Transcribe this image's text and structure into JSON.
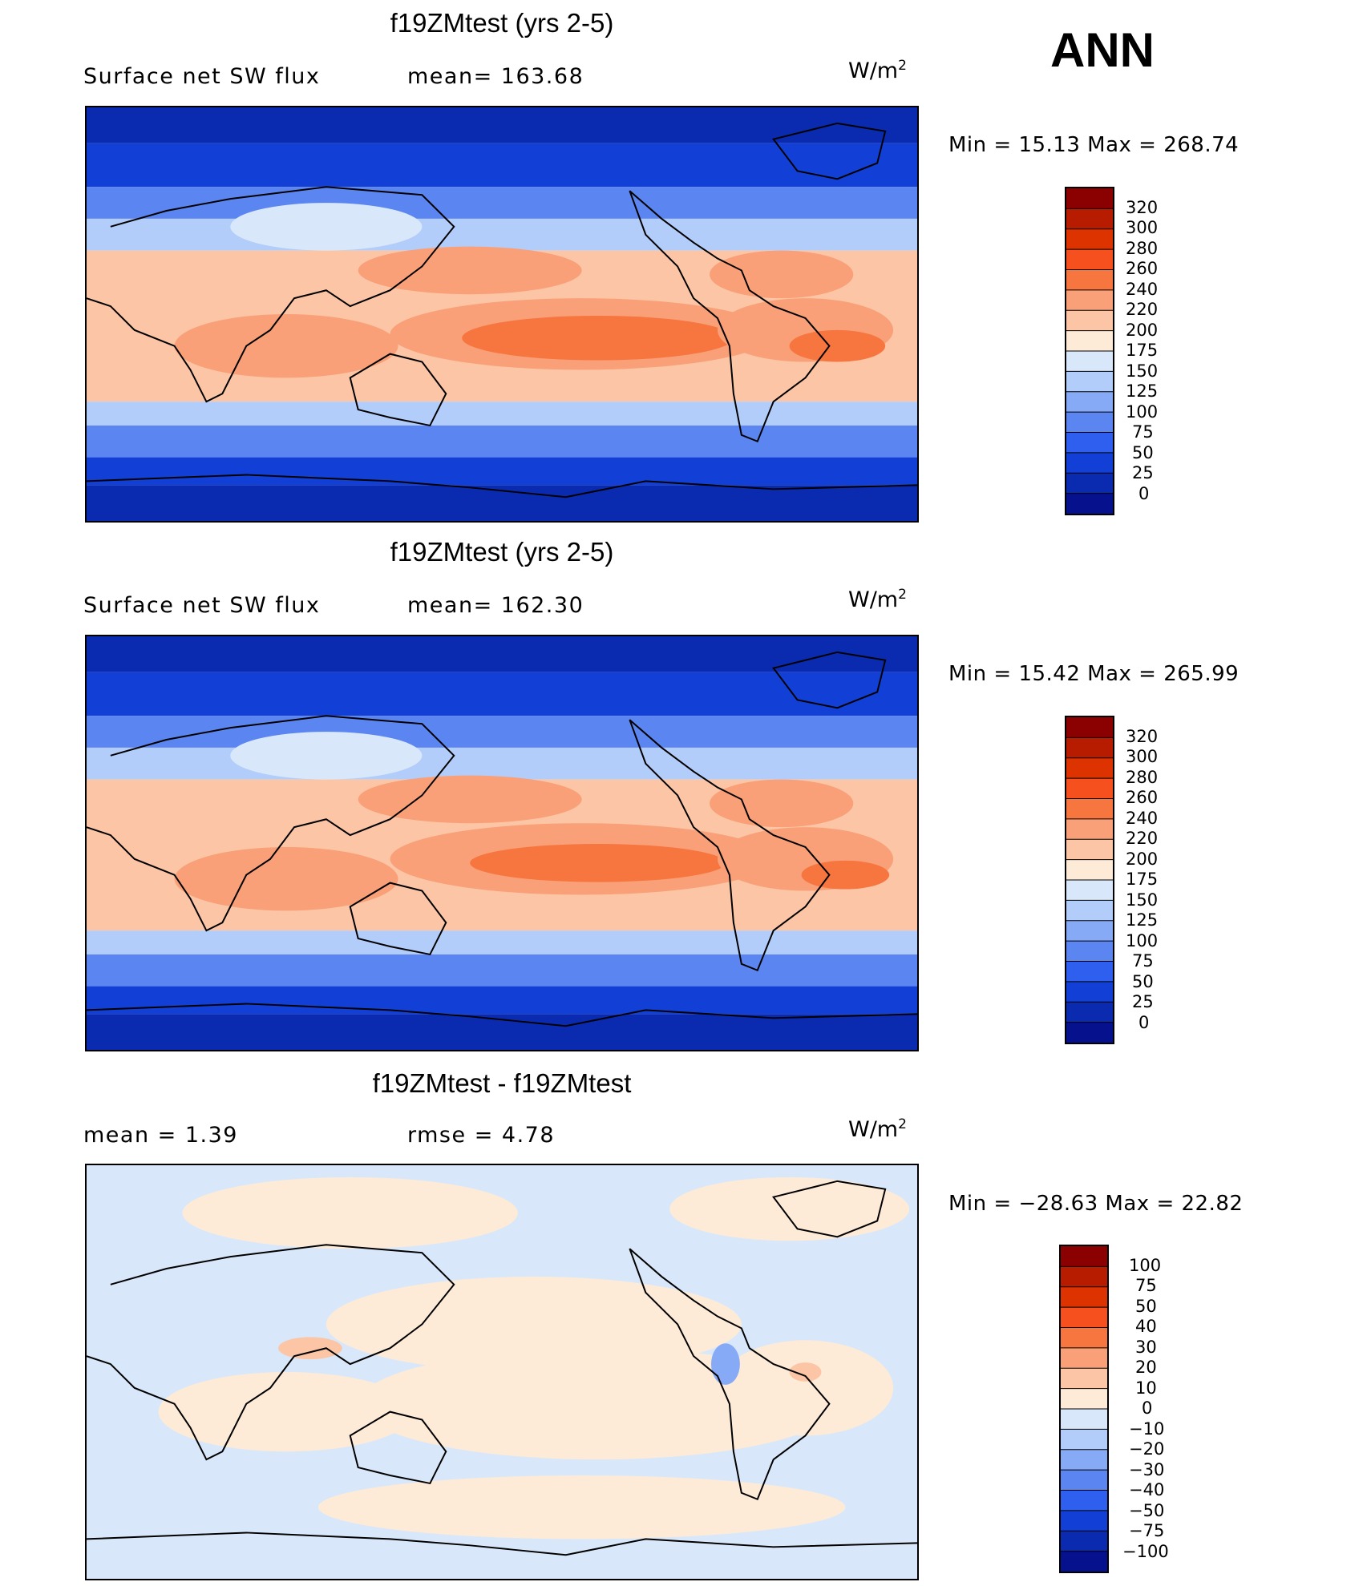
{
  "season": "ANN",
  "chart_data": [
    {
      "type": "heatmap",
      "title": "f19ZMtest (yrs 2-5)",
      "variable": "Surface net SW flux",
      "stat_text": "mean=  163.68",
      "units": "W/m",
      "units_sup": "2",
      "minmax_text": "Min  =    15.13  Max  =  268.74",
      "min": 15.13,
      "max": 268.74,
      "mean": 163.68,
      "colorbar_levels": [
        "320",
        "300",
        "280",
        "260",
        "240",
        "220",
        "200",
        "175",
        "150",
        "125",
        "100",
        "75",
        "50",
        "25",
        "0"
      ],
      "colorbar_colors": [
        "#8b0000",
        "#b81c00",
        "#dd3300",
        "#f5501e",
        "#f7753f",
        "#f9a078",
        "#fcc6a6",
        "#fdebd8",
        "#d8e8fa",
        "#b3cdfa",
        "#86aaf5",
        "#5b85f0",
        "#2f5fee",
        "#1240d6",
        "#0a2bb0",
        "#06118e"
      ]
    },
    {
      "type": "heatmap",
      "title": "f19ZMtest (yrs 2-5)",
      "variable": "Surface net SW flux",
      "stat_text": "mean=  162.30",
      "units": "W/m",
      "units_sup": "2",
      "minmax_text": "Min  =    15.42  Max  =  265.99",
      "min": 15.42,
      "max": 265.99,
      "mean": 162.3,
      "colorbar_levels": [
        "320",
        "300",
        "280",
        "260",
        "240",
        "220",
        "200",
        "175",
        "150",
        "125",
        "100",
        "75",
        "50",
        "25",
        "0"
      ],
      "colorbar_colors": [
        "#8b0000",
        "#b81c00",
        "#dd3300",
        "#f5501e",
        "#f7753f",
        "#f9a078",
        "#fcc6a6",
        "#fdebd8",
        "#d8e8fa",
        "#b3cdfa",
        "#86aaf5",
        "#5b85f0",
        "#2f5fee",
        "#1240d6",
        "#0a2bb0",
        "#06118e"
      ]
    },
    {
      "type": "heatmap",
      "title": "f19ZMtest - f19ZMtest",
      "stat_left": "mean  =      1.39",
      "stat_text": "rmse  =      4.78",
      "units": "W/m",
      "units_sup": "2",
      "minmax_text": "Min  = −28.63  Max  =    22.82",
      "min": -28.63,
      "max": 22.82,
      "mean": 1.39,
      "rmse": 4.78,
      "colorbar_levels": [
        "100",
        "75",
        "50",
        "40",
        "30",
        "20",
        "10",
        "0",
        "−10",
        "−20",
        "−30",
        "−40",
        "−50",
        "−75",
        "−100"
      ],
      "colorbar_colors": [
        "#8b0000",
        "#b81c00",
        "#dd3300",
        "#f5501e",
        "#f7753f",
        "#f9a078",
        "#fcc6a6",
        "#fdebd8",
        "#d8e8fa",
        "#b3cdfa",
        "#86aaf5",
        "#5b85f0",
        "#2f5fee",
        "#1240d6",
        "#0a2bb0",
        "#06118e"
      ]
    }
  ]
}
